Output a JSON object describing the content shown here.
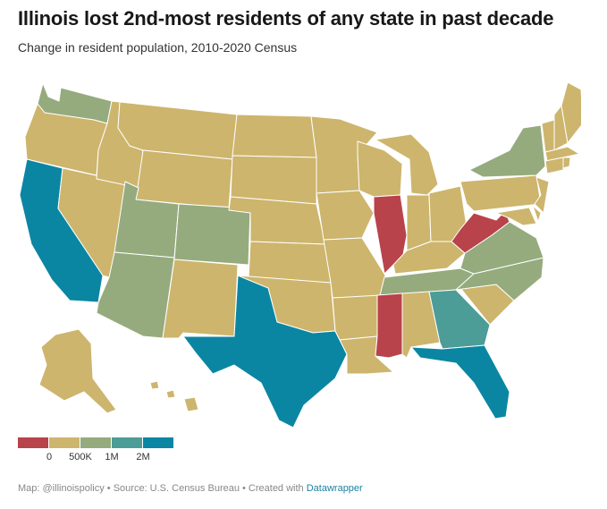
{
  "header": {
    "title": "Illinois lost 2nd-most residents of any state in past decade",
    "subtitle": "Change in resident population, 2010-2020 Census"
  },
  "legend": {
    "colors": [
      "#b8434b",
      "#cdb56d",
      "#95ab7e",
      "#4c9c97",
      "#0a86a3"
    ],
    "labels": [
      "0",
      "500K",
      "1M",
      "2M"
    ]
  },
  "colors": {
    "loss": "#b8434b",
    "tier1": "#cdb56d",
    "tier2": "#95ab7e",
    "tier3": "#4c9c97",
    "tier4": "#0a86a3"
  },
  "footer": {
    "credit": "Map: @illinoispolicy • Source: U.S. Census Bureau • Created with ",
    "link_label": "Datawrapper"
  }
}
